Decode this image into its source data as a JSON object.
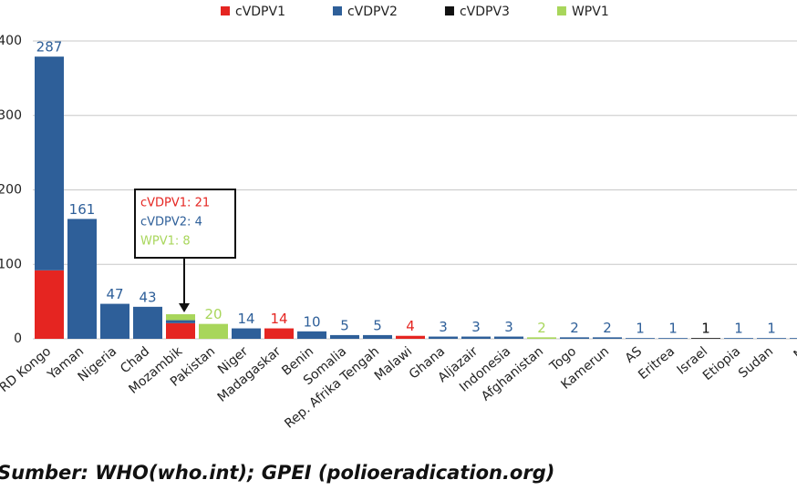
{
  "chart_data": {
    "type": "stacked_bar",
    "categories": [
      "RD Kongo",
      "Yaman",
      "Nigeria",
      "Chad",
      "Mozambik",
      "Pakistan",
      "Niger",
      "Madagaskar",
      "Benin",
      "Somalia",
      "Rep. Afrika Tengah",
      "Malawi",
      "Ghana",
      "Aljazair",
      "Indonesia",
      "Afghanistan",
      "Togo",
      "Kamerun",
      "AS",
      "Eritrea",
      "Israel",
      "Etiopia",
      "Sudan",
      "M"
    ],
    "series": [
      {
        "name": "cVDPV1",
        "color": "#e52521",
        "values": [
          92,
          null,
          null,
          null,
          21,
          null,
          null,
          14,
          null,
          null,
          null,
          4,
          null,
          null,
          null,
          null,
          null,
          null,
          null,
          null,
          null,
          null,
          null,
          null
        ]
      },
      {
        "name": "cVDPV2",
        "color": "#2e5f99",
        "values": [
          287,
          161,
          47,
          43,
          4,
          null,
          14,
          null,
          10,
          5,
          5,
          null,
          3,
          3,
          3,
          null,
          2,
          2,
          1,
          1,
          null,
          1,
          1,
          1
        ]
      },
      {
        "name": "cVDPV3",
        "color": "#111111",
        "values": [
          null,
          null,
          null,
          null,
          null,
          null,
          null,
          null,
          null,
          null,
          null,
          null,
          null,
          null,
          null,
          null,
          null,
          null,
          null,
          null,
          1,
          null,
          null,
          null
        ]
      },
      {
        "name": "WPV1",
        "color": "#a8d65b",
        "values": [
          null,
          null,
          null,
          null,
          8,
          20,
          null,
          null,
          null,
          null,
          null,
          null,
          null,
          null,
          null,
          2,
          null,
          null,
          null,
          null,
          null,
          null,
          null,
          null
        ]
      }
    ],
    "ylim": [
      0,
      400
    ],
    "yticks": [
      0,
      100,
      200,
      300,
      400
    ],
    "grid": true,
    "legend": "top",
    "annotation": {
      "category": "Mozambik",
      "lines": [
        "cVDPV1: 21",
        "cVDPV2: 4",
        "WPV1: 8"
      ]
    },
    "source": "Sumber: WHO(who.int); GPEI (polioeradication.org)"
  }
}
